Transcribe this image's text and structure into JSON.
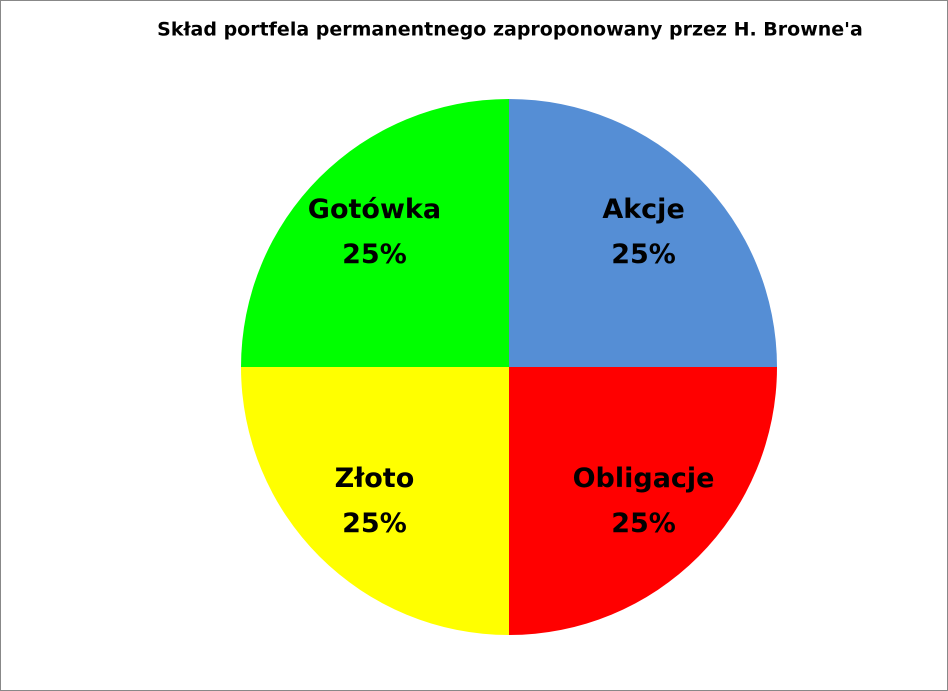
{
  "chart_data": {
    "type": "pie",
    "title": "Skład portfela permanentnego zaproponowany przez H. Browne'a",
    "categories": [
      "Akcje",
      "Obligacje",
      "Złoto",
      "Gotówka"
    ],
    "values": [
      25,
      25,
      25,
      25
    ],
    "value_labels": [
      "25%",
      "25%",
      "25%",
      "25%"
    ],
    "colors": [
      "#558ed5",
      "#ff0000",
      "#ffff00",
      "#00ff00"
    ]
  }
}
